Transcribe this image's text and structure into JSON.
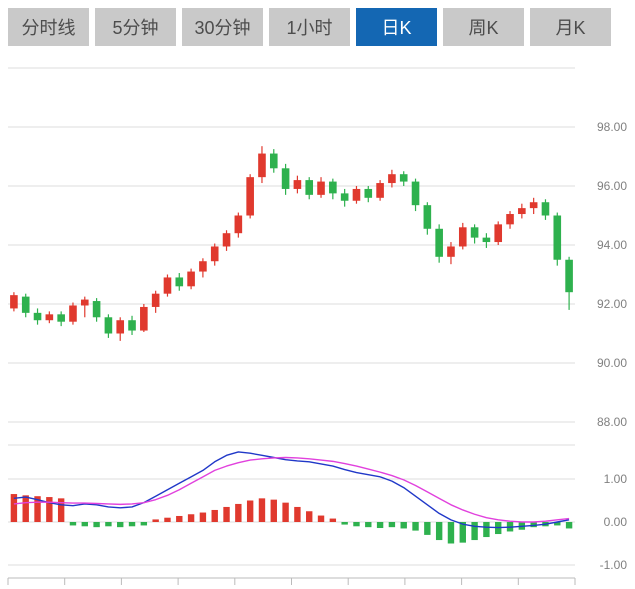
{
  "tabs": [
    {
      "label": "分时线",
      "active": false
    },
    {
      "label": "5分钟",
      "active": false
    },
    {
      "label": "30分钟",
      "active": false
    },
    {
      "label": "1小时",
      "active": false
    },
    {
      "label": "日K",
      "active": true
    },
    {
      "label": "周K",
      "active": false
    },
    {
      "label": "月K",
      "active": false
    }
  ],
  "colors": {
    "up": "#e0392e",
    "down": "#2eb14e",
    "dif_line": "#2038c8",
    "dea_line": "#e141dd",
    "grid": "#dcdcdc",
    "axis_text": "#808080",
    "tab_bg": "#c9c9c9",
    "tab_active_bg": "#1467b3"
  },
  "chart_data": {
    "type": "candlestick",
    "title": "",
    "panels": [
      {
        "name": "price",
        "tick_labels": [
          "98.00",
          "96.00",
          "94.00",
          "92.00",
          "90.00",
          "88.00"
        ],
        "tick_values": [
          98,
          96,
          94,
          92,
          90,
          88
        ],
        "ylim": [
          87.7,
          100.0
        ],
        "grid": true,
        "legend": "none"
      },
      {
        "name": "macd",
        "tick_labels": [
          "1.00",
          "0.00",
          "-1.00"
        ],
        "tick_values": [
          1,
          0,
          -1
        ],
        "ylim": [
          -1.3,
          1.8
        ],
        "grid": true,
        "legend": "none"
      }
    ],
    "candles_format": [
      "open",
      "high",
      "low",
      "close"
    ],
    "candles": [
      [
        91.85,
        92.4,
        91.75,
        92.3
      ],
      [
        92.25,
        92.35,
        91.55,
        91.7
      ],
      [
        91.7,
        91.85,
        91.3,
        91.45
      ],
      [
        91.45,
        91.75,
        91.35,
        91.65
      ],
      [
        91.65,
        91.75,
        91.25,
        91.4
      ],
      [
        91.4,
        92.05,
        91.3,
        91.95
      ],
      [
        91.95,
        92.25,
        91.55,
        92.15
      ],
      [
        92.1,
        92.2,
        91.4,
        91.55
      ],
      [
        91.55,
        91.65,
        90.85,
        91.0
      ],
      [
        91.0,
        91.55,
        90.75,
        91.45
      ],
      [
        91.45,
        91.6,
        90.95,
        91.1
      ],
      [
        91.1,
        92.0,
        91.05,
        91.9
      ],
      [
        91.9,
        92.45,
        91.7,
        92.35
      ],
      [
        92.35,
        93.0,
        92.25,
        92.9
      ],
      [
        92.9,
        93.05,
        92.45,
        92.6
      ],
      [
        92.6,
        93.2,
        92.5,
        93.1
      ],
      [
        93.1,
        93.55,
        92.9,
        93.45
      ],
      [
        93.45,
        94.05,
        93.3,
        93.95
      ],
      [
        93.95,
        94.5,
        93.8,
        94.4
      ],
      [
        94.4,
        95.1,
        94.25,
        95.0
      ],
      [
        95.0,
        96.4,
        94.9,
        96.3
      ],
      [
        96.3,
        97.35,
        96.1,
        97.1
      ],
      [
        97.1,
        97.25,
        96.45,
        96.6
      ],
      [
        96.6,
        96.75,
        95.7,
        95.9
      ],
      [
        95.9,
        96.35,
        95.75,
        96.2
      ],
      [
        96.2,
        96.3,
        95.55,
        95.7
      ],
      [
        95.7,
        96.3,
        95.6,
        96.15
      ],
      [
        96.15,
        96.25,
        95.55,
        95.75
      ],
      [
        95.75,
        95.9,
        95.3,
        95.5
      ],
      [
        95.5,
        96.0,
        95.4,
        95.9
      ],
      [
        95.9,
        96.0,
        95.45,
        95.6
      ],
      [
        95.6,
        96.2,
        95.5,
        96.1
      ],
      [
        96.1,
        96.55,
        95.95,
        96.4
      ],
      [
        96.4,
        96.5,
        96.0,
        96.15
      ],
      [
        96.15,
        96.25,
        95.15,
        95.35
      ],
      [
        95.35,
        95.45,
        94.35,
        94.55
      ],
      [
        94.55,
        94.7,
        93.4,
        93.6
      ],
      [
        93.6,
        94.1,
        93.35,
        93.95
      ],
      [
        93.95,
        94.75,
        93.85,
        94.6
      ],
      [
        94.6,
        94.7,
        94.05,
        94.25
      ],
      [
        94.25,
        94.4,
        93.9,
        94.1
      ],
      [
        94.1,
        94.8,
        94.0,
        94.7
      ],
      [
        94.7,
        95.15,
        94.55,
        95.05
      ],
      [
        95.05,
        95.4,
        94.9,
        95.25
      ],
      [
        95.25,
        95.6,
        95.05,
        95.45
      ],
      [
        95.45,
        95.55,
        94.85,
        95.0
      ],
      [
        95.0,
        95.1,
        93.3,
        93.5
      ],
      [
        93.5,
        93.6,
        91.8,
        92.4
      ]
    ],
    "macd": {
      "hist": [
        0.65,
        0.62,
        0.6,
        0.58,
        0.55,
        -0.08,
        -0.1,
        -0.12,
        -0.1,
        -0.12,
        -0.1,
        -0.08,
        0.06,
        0.1,
        0.14,
        0.18,
        0.22,
        0.28,
        0.35,
        0.42,
        0.5,
        0.55,
        0.52,
        0.45,
        0.35,
        0.25,
        0.15,
        0.08,
        -0.06,
        -0.1,
        -0.12,
        -0.14,
        -0.12,
        -0.15,
        -0.2,
        -0.3,
        -0.42,
        -0.5,
        -0.48,
        -0.42,
        -0.35,
        -0.28,
        -0.22,
        -0.18,
        -0.12,
        -0.1,
        -0.08,
        -0.15
      ],
      "dif": [
        0.55,
        0.58,
        0.52,
        0.45,
        0.4,
        0.38,
        0.42,
        0.4,
        0.35,
        0.33,
        0.35,
        0.45,
        0.6,
        0.75,
        0.9,
        1.05,
        1.2,
        1.4,
        1.55,
        1.63,
        1.6,
        1.55,
        1.5,
        1.45,
        1.42,
        1.4,
        1.35,
        1.3,
        1.22,
        1.15,
        1.1,
        1.05,
        0.95,
        0.8,
        0.6,
        0.4,
        0.2,
        0.05,
        -0.05,
        -0.1,
        -0.12,
        -0.13,
        -0.12,
        -0.1,
        -0.08,
        -0.05,
        0.0,
        0.05
      ],
      "dea": [
        0.42,
        0.45,
        0.46,
        0.46,
        0.45,
        0.44,
        0.44,
        0.43,
        0.42,
        0.41,
        0.42,
        0.45,
        0.52,
        0.62,
        0.75,
        0.9,
        1.05,
        1.2,
        1.3,
        1.38,
        1.44,
        1.47,
        1.49,
        1.5,
        1.49,
        1.47,
        1.44,
        1.41,
        1.36,
        1.3,
        1.23,
        1.16,
        1.08,
        0.98,
        0.85,
        0.7,
        0.55,
        0.4,
        0.28,
        0.18,
        0.1,
        0.05,
        0.02,
        0.0,
        0.0,
        0.02,
        0.05,
        0.08
      ]
    }
  }
}
